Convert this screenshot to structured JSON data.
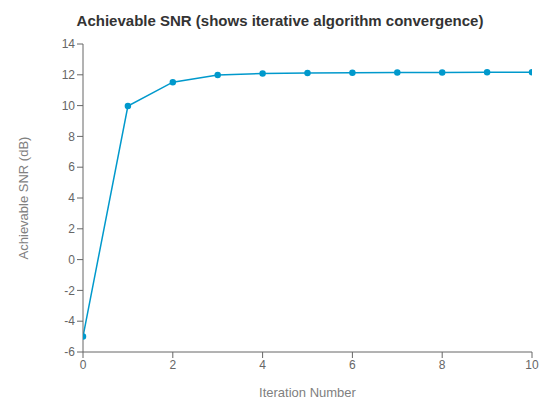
{
  "chart_data": {
    "type": "line",
    "title": "Achievable SNR (shows iterative algorithm convergence)",
    "xlabel": "Iteration Number",
    "ylabel": "Achievable SNR (dB)",
    "x": [
      0,
      1,
      2,
      3,
      4,
      5,
      6,
      7,
      8,
      9,
      10
    ],
    "values": [
      -5.0,
      9.97,
      11.52,
      11.98,
      12.08,
      12.12,
      12.14,
      12.15,
      12.155,
      12.158,
      12.16
    ],
    "color": "#0099CC",
    "marker": "point",
    "xlim": [
      0,
      10
    ],
    "ylim": [
      -6,
      14
    ],
    "xticks": [
      0,
      2,
      4,
      6,
      8,
      10
    ],
    "yticks": [
      -6,
      -4,
      -2,
      0,
      2,
      4,
      6,
      8,
      10,
      12,
      14
    ],
    "grid": false
  }
}
